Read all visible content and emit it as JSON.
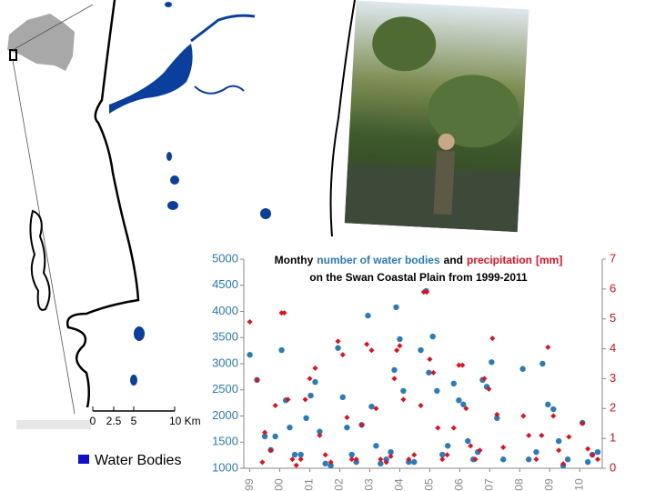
{
  "map": {
    "scale_labels": [
      "0",
      "2.5",
      "5",
      "10 Km"
    ],
    "legend": "Water Bodies",
    "legend_color": "#1010c8"
  },
  "chart_data": {
    "type": "line",
    "title": [
      {
        "text": "Monthy",
        "color": "#000000"
      },
      {
        "text": "number of water bodies",
        "color": "#2b7bba"
      },
      {
        "text": "and",
        "color": "#000000"
      },
      {
        "text": "precipitation",
        "color": "#e0101e"
      },
      {
        "text": "[mm]",
        "color": "#e0101e"
      }
    ],
    "subtitle": "on the Swan Coastal Plain from 1999-2011",
    "xlim": [
      1998.8,
      2010.75
    ],
    "xticks": [
      {
        "value": 1999,
        "label": "99"
      },
      {
        "value": 2000,
        "label": "00"
      },
      {
        "value": 2001,
        "label": "01"
      },
      {
        "value": 2002,
        "label": "02"
      },
      {
        "value": 2003,
        "label": "03"
      },
      {
        "value": 2004,
        "label": "04"
      },
      {
        "value": 2005,
        "label": "05"
      },
      {
        "value": 2006,
        "label": "06"
      },
      {
        "value": 2007,
        "label": "07"
      },
      {
        "value": 2008,
        "label": "08"
      },
      {
        "value": 2009,
        "label": "09"
      },
      {
        "value": 2010,
        "label": "10"
      }
    ],
    "ylim": [
      1000,
      5000
    ],
    "yticks": [
      1000,
      1500,
      2000,
      2500,
      3000,
      3500,
      4000,
      4500,
      5000
    ],
    "y2lim": [
      0,
      7
    ],
    "y2ticks": [
      0,
      1,
      2,
      3,
      4,
      5,
      6,
      7
    ],
    "series": [
      {
        "name": "number of water bodies",
        "color": "#2b7bba",
        "marker": "circle",
        "x": [
          1999.0,
          1999.24,
          1999.5,
          1999.7,
          1999.85,
          2000.06,
          2000.2,
          2000.33,
          2000.5,
          2000.7,
          2000.88,
          2001.03,
          2001.18,
          2001.33,
          2001.52,
          2001.7,
          2001.94,
          2002.1,
          2002.24,
          2002.4,
          2002.55,
          2002.73,
          2002.94,
          2003.06,
          2003.21,
          2003.36,
          2003.55,
          2003.7,
          2003.82,
          2003.88,
          2004.0,
          2004.12,
          2004.3,
          2004.48,
          2004.7,
          2004.88,
          2004.97,
          2005.1,
          2005.24,
          2005.42,
          2005.6,
          2005.8,
          2005.97,
          2006.12,
          2006.27,
          2006.45,
          2006.6,
          2006.76,
          2006.9,
          2007.06,
          2007.24,
          2007.45,
          2008.1,
          2008.3,
          2008.55,
          2008.76,
          2008.94,
          2009.12,
          2009.3,
          2009.45,
          2009.6,
          2010.09,
          2010.27,
          2010.42,
          2010.6
        ],
        "values": [
          3170,
          2690,
          1610,
          1350,
          1610,
          3260,
          2300,
          1780,
          1260,
          1260,
          1960,
          2390,
          2650,
          1700,
          1090,
          1050,
          3300,
          2360,
          1780,
          1260,
          1120,
          1830,
          3920,
          2180,
          1430,
          1090,
          1170,
          1310,
          2880,
          4080,
          3470,
          2480,
          1120,
          1120,
          3260,
          4390,
          2830,
          3520,
          2480,
          1260,
          1430,
          2620,
          2300,
          2220,
          1520,
          1170,
          1310,
          2690,
          2560,
          3030,
          1960,
          1170,
          2900,
          1170,
          1310,
          3000,
          2220,
          2130,
          1520,
          1050,
          1170,
          1870,
          1120,
          1260,
          1310
        ]
      },
      {
        "name": "precipitation",
        "color": "#e0101e",
        "marker": "diamond",
        "axis": "y2",
        "x": [
          1999.0,
          1999.24,
          1999.42,
          1999.5,
          1999.7,
          1999.85,
          2000.06,
          2000.15,
          2000.27,
          2000.42,
          2000.55,
          2000.7,
          2000.85,
          2001.0,
          2001.18,
          2001.33,
          2001.52,
          2001.7,
          2001.94,
          2002.1,
          2002.24,
          2002.4,
          2002.55,
          2002.73,
          2002.9,
          2003.06,
          2003.21,
          2003.36,
          2003.55,
          2003.7,
          2003.82,
          2003.9,
          2004.0,
          2004.12,
          2004.3,
          2004.48,
          2004.7,
          2004.8,
          2004.9,
          2005.0,
          2005.12,
          2005.27,
          2005.42,
          2005.58,
          2005.8,
          2005.97,
          2006.09,
          2006.21,
          2006.36,
          2006.52,
          2006.67,
          2006.82,
          2006.97,
          2007.09,
          2007.24,
          2007.45,
          2008.12,
          2008.3,
          2008.55,
          2008.73,
          2008.94,
          2009.12,
          2009.3,
          2009.45,
          2009.64,
          2010.09,
          2010.27,
          2010.42,
          2010.6
        ],
        "values": [
          4.9,
          2.95,
          0.2,
          1.2,
          0.6,
          2.1,
          5.2,
          5.2,
          2.3,
          0.3,
          0.1,
          0.3,
          2.3,
          3.0,
          3.35,
          1.1,
          0.45,
          0.2,
          4.25,
          3.8,
          1.7,
          0.3,
          0.3,
          1.45,
          4.15,
          3.95,
          2.0,
          0.3,
          0.2,
          0.4,
          3.0,
          3.95,
          4.1,
          2.3,
          0.3,
          0.45,
          2.1,
          5.9,
          5.9,
          3.65,
          3.2,
          1.35,
          0.3,
          0.45,
          1.35,
          3.45,
          3.45,
          2.0,
          0.75,
          0.3,
          0.6,
          3.0,
          2.65,
          4.35,
          1.8,
          0.7,
          1.75,
          1.1,
          0.3,
          1.1,
          4.05,
          1.75,
          0.6,
          0.15,
          1.05,
          1.5,
          0.65,
          0.45,
          0.3
        ]
      }
    ]
  }
}
